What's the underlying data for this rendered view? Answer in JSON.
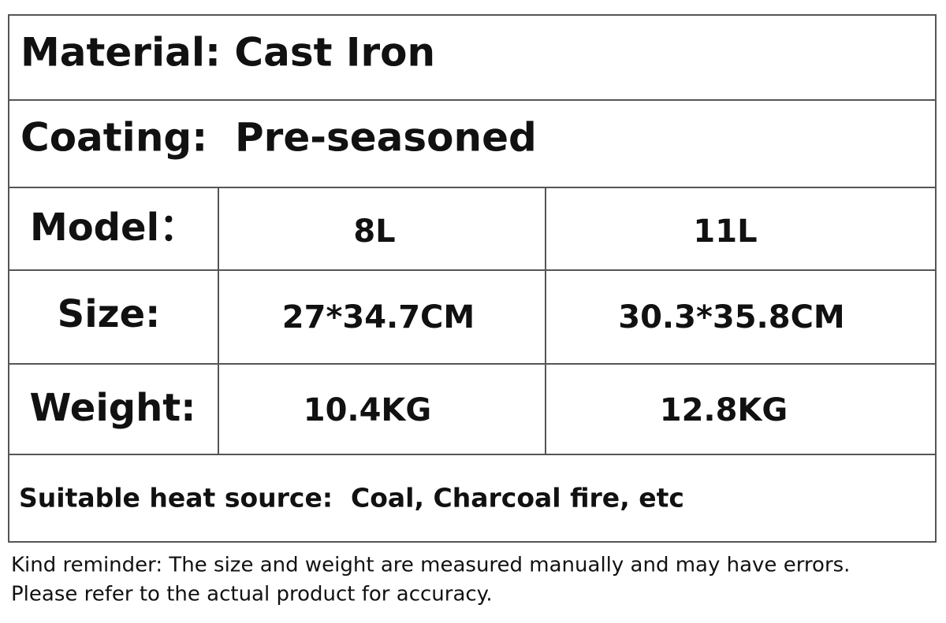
{
  "material": "Material: Cast Iron",
  "coating": "Coating:  Pre-seasoned",
  "table": {
    "header": [
      "Model：",
      "8L",
      "11L"
    ],
    "rows": [
      [
        "Size:",
        "27*34.7CM",
        "30.3*35.8CM"
      ],
      [
        "Weight:",
        "10.4KG",
        "12.8KG"
      ]
    ]
  },
  "heat_source": "Suitable heat source:  Coal, Charcoal fire, etc",
  "reminder": [
    "Kind reminder: The size and weight are measured manually and may have errors.",
    "Please refer to the actual product for accuracy."
  ]
}
